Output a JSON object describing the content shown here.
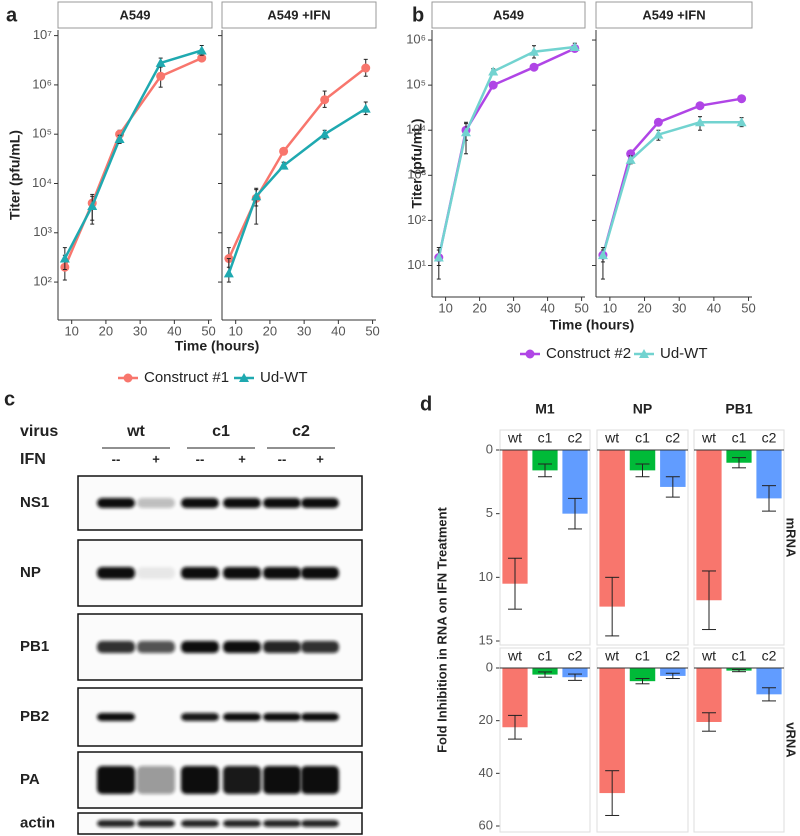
{
  "chart_data": [
    {
      "type": "line",
      "label": "a",
      "ylabel": "Titer (pfu/mL)",
      "xlabel": "Time (hours)",
      "x": [
        8,
        16,
        24,
        36,
        48
      ],
      "xlim": [
        6,
        51
      ],
      "xticks": [
        10,
        20,
        30,
        40,
        50
      ],
      "log": true,
      "ylim": [
        17,
        13000000
      ],
      "yticks": [
        {
          "value": 100,
          "label": "10²"
        },
        {
          "value": 1000,
          "label": "10³"
        },
        {
          "value": 10000,
          "label": "10⁴"
        },
        {
          "value": 100000,
          "label": "10⁵"
        },
        {
          "value": 1000000,
          "label": "10⁶"
        },
        {
          "value": 10000000,
          "label": "10⁷"
        }
      ],
      "series": [
        {
          "name": "Construct #1",
          "color": "#F8766D",
          "marker": "circle"
        },
        {
          "name": "Ud-WT",
          "color": "#1FA9B0",
          "marker": "triangle"
        }
      ],
      "facets": [
        {
          "title": "A549",
          "values": [
            [
              200,
              4000,
              100000,
              1500000,
              3500000
            ],
            [
              300,
              3500,
              80000,
              2800000,
              5000000
            ]
          ],
          "lower": [
            [
              110,
              1800,
              80000,
              900000,
              3000000
            ],
            [
              180,
              1500,
              65000,
              2300000,
              4000000
            ]
          ],
          "upper": [
            [
              350,
              6000,
              120000,
              2600000,
              4200000
            ],
            [
              500,
              5500,
              95000,
              3500000,
              6300000
            ]
          ]
        },
        {
          "title": "A549 +IFN",
          "values": [
            [
              300,
              5000,
              45000,
              500000,
              2200000
            ],
            [
              150,
              5500,
              23000,
              100000,
              330000
            ]
          ],
          "lower": [
            [
              200,
              1500,
              40000,
              350000,
              1500000
            ],
            [
              100,
              3500,
              20000,
              80000,
              250000
            ]
          ],
          "upper": [
            [
              500,
              8000,
              50000,
              750000,
              3300000
            ],
            [
              300,
              7500,
              27000,
              120000,
              450000
            ]
          ]
        }
      ]
    },
    {
      "type": "line",
      "label": "b",
      "ylabel": "Titer (pfu/mL)",
      "xlabel": "Time (hours)",
      "x": [
        8,
        16,
        24,
        36,
        48
      ],
      "xlim": [
        6,
        51
      ],
      "xticks": [
        10,
        20,
        30,
        40,
        50
      ],
      "log": true,
      "ylim": [
        2,
        1670000
      ],
      "yticks": [
        {
          "value": 10,
          "label": "10¹"
        },
        {
          "value": 100,
          "label": "10²"
        },
        {
          "value": 1000,
          "label": "10³"
        },
        {
          "value": 10000,
          "label": "10⁴"
        },
        {
          "value": 100000,
          "label": "10⁵"
        },
        {
          "value": 1000000,
          "label": "10⁶"
        }
      ],
      "series": [
        {
          "name": "Construct #2",
          "color": "#B045E6",
          "marker": "circle"
        },
        {
          "name": "Ud-WT",
          "color": "#72D3D0",
          "marker": "triangle"
        }
      ],
      "facets": [
        {
          "title": "A549",
          "values": [
            [
              15,
              10000,
              100000,
              250000,
              650000
            ],
            [
              15,
              9000,
              200000,
              550000,
              700000
            ]
          ],
          "lower": [
            [
              10,
              6000,
              90000,
              220000,
              550000
            ],
            [
              5,
              3000,
              170000,
              400000,
              600000
            ]
          ],
          "upper": [
            [
              22,
              14000,
              110000,
              280000,
              750000
            ],
            [
              25,
              15000,
              230000,
              750000,
              850000
            ]
          ]
        },
        {
          "title": "A549 +IFN",
          "values": [
            [
              17,
              3000,
              15000,
              35000,
              50000
            ],
            [
              17,
              2200,
              8000,
              15000,
              15000
            ]
          ],
          "lower": [
            [
              12,
              2500,
              13000,
              32000,
              45000
            ],
            [
              5,
              1800,
              6000,
              10000,
              12000
            ]
          ],
          "upper": [
            [
              22,
              3500,
              17000,
              38000,
              56000
            ],
            [
              25,
              2700,
              10000,
              20000,
              19000
            ]
          ]
        }
      ]
    },
    {
      "type": "bar",
      "label": "d",
      "ylabel": "Fold Inhibition in RNA on IFN Treatment",
      "columns": [
        "M1",
        "NP",
        "PB1"
      ],
      "categories": [
        "wt",
        "c1",
        "c2"
      ],
      "colors": [
        "#F8766D",
        "#00BA38",
        "#619CFF"
      ],
      "rows": [
        {
          "name": "mRNA",
          "ylim": [
            0,
            15
          ],
          "yticks": [
            0,
            5,
            10,
            15
          ],
          "facets": [
            {
              "values": [
                10.5,
                1.6,
                5
              ],
              "errors": [
                2,
                0.5,
                1.2
              ]
            },
            {
              "values": [
                12.3,
                1.6,
                2.9
              ],
              "errors": [
                2.3,
                0.5,
                0.8
              ]
            },
            {
              "values": [
                11.8,
                1.0,
                3.8
              ],
              "errors": [
                2.3,
                0.4,
                1
              ]
            }
          ]
        },
        {
          "name": "vRNA",
          "ylim": [
            0,
            60
          ],
          "yticks": [
            0,
            20,
            40,
            60
          ],
          "facets": [
            {
              "values": [
                22.5,
                2.5,
                3.5
              ],
              "errors": [
                4.5,
                1,
                1.2
              ]
            },
            {
              "values": [
                47.5,
                5,
                3
              ],
              "errors": [
                8.5,
                1,
                1
              ]
            },
            {
              "values": [
                20.5,
                1,
                10
              ],
              "errors": [
                3.5,
                0.4,
                2.5
              ]
            }
          ]
        }
      ]
    }
  ],
  "blot": {
    "label": "c",
    "virus_label": "virus",
    "groups": [
      "wt",
      "c1",
      "c2"
    ],
    "ifn_label": "IFN",
    "treatments": [
      "--",
      "+",
      "--",
      "+",
      "--",
      "+"
    ],
    "proteins": [
      "NS1",
      "NP",
      "PB1",
      "PB2",
      "PA",
      "actin"
    ]
  }
}
